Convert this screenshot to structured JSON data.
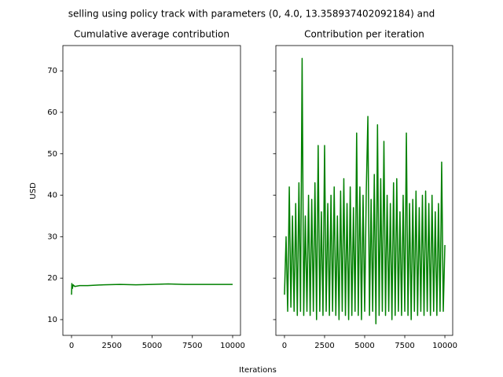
{
  "chart_data": [
    {
      "type": "line",
      "suptitle": "selling using policy track with parameters (0, 4.0, 13.358937402092184) and",
      "title": "Cumulative average contribution",
      "ylabel": "USD",
      "xlabel": "Iterations",
      "x": [
        0,
        20,
        50,
        100,
        200,
        500,
        1000,
        2000,
        3000,
        4000,
        5000,
        6000,
        7000,
        8000,
        9000,
        10000
      ],
      "series": [
        {
          "color": "#008000",
          "values": [
            16,
            18.7,
            17.5,
            18.4,
            18.0,
            18.2,
            18.2,
            18.4,
            18.5,
            18.4,
            18.5,
            18.6,
            18.5,
            18.5,
            18.5,
            18.5
          ]
        }
      ],
      "xlim": [
        -537,
        10488
      ],
      "xticks": [
        0,
        2500,
        5000,
        7500,
        10000
      ],
      "ylim": [
        6.2,
        76.1
      ],
      "yticks": [
        10,
        20,
        30,
        40,
        50,
        60,
        70
      ]
    },
    {
      "type": "line",
      "title": "Contribution per iteration",
      "x": [
        0,
        100,
        200,
        300,
        400,
        500,
        600,
        700,
        800,
        900,
        1000,
        1100,
        1200,
        1300,
        1400,
        1500,
        1600,
        1700,
        1800,
        1900,
        2000,
        2100,
        2200,
        2300,
        2400,
        2500,
        2600,
        2700,
        2800,
        2900,
        3000,
        3100,
        3200,
        3300,
        3400,
        3500,
        3600,
        3700,
        3800,
        3900,
        4000,
        4100,
        4200,
        4300,
        4400,
        4500,
        4600,
        4700,
        4800,
        4900,
        5000,
        5100,
        5200,
        5300,
        5400,
        5500,
        5600,
        5700,
        5800,
        5900,
        6000,
        6100,
        6200,
        6300,
        6400,
        6500,
        6600,
        6700,
        6800,
        6900,
        7000,
        7100,
        7200,
        7300,
        7400,
        7500,
        7600,
        7700,
        7800,
        7900,
        8000,
        8100,
        8200,
        8300,
        8400,
        8500,
        8600,
        8700,
        8800,
        8900,
        9000,
        9100,
        9200,
        9300,
        9400,
        9500,
        9600,
        9700,
        9800,
        9900,
        10000
      ],
      "series": [
        {
          "color": "#008000",
          "values": [
            16,
            30,
            12,
            42,
            13,
            35,
            12,
            38,
            11,
            43,
            12,
            73,
            11,
            35,
            12,
            40,
            11,
            39,
            12,
            43,
            10,
            52,
            12,
            36,
            11,
            52,
            12,
            38,
            11,
            40,
            12,
            42,
            11,
            35,
            10,
            41,
            12,
            44,
            11,
            38,
            10,
            42,
            11,
            37,
            12,
            55,
            11,
            42,
            10,
            40,
            12,
            41,
            59,
            11,
            39,
            12,
            45,
            9,
            57,
            11,
            44,
            12,
            53,
            11,
            40,
            12,
            38,
            10,
            43,
            11,
            44,
            12,
            36,
            11,
            40,
            12,
            55,
            11,
            38,
            10,
            39,
            12,
            41,
            11,
            37,
            12,
            40,
            11,
            41,
            12,
            38,
            11,
            40,
            12,
            36,
            11,
            38,
            12,
            48,
            12,
            28
          ]
        }
      ],
      "xlim": [
        -537,
        10488
      ],
      "xticks": [
        0,
        2500,
        5000,
        7500,
        10000
      ],
      "ylim": [
        6.2,
        76.1
      ],
      "yticks": [
        10,
        20,
        30,
        40,
        50,
        60,
        70
      ]
    }
  ]
}
